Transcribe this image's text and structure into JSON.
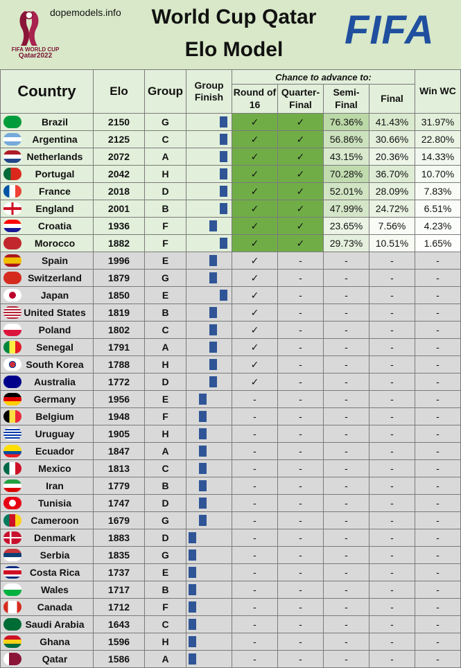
{
  "header": {
    "site": "dopemodels.info",
    "title_line1": "World Cup Qatar",
    "title_line2": "Elo Model",
    "fifa_logo": "FIFA",
    "emblem_text_line1": "FIFA WORLD CUP",
    "emblem_text_line2": "Qatar2022"
  },
  "columns": {
    "country": "Country",
    "elo": "Elo",
    "group": "Group",
    "group_finish": "Group Finish",
    "chance_header": "Chance to advance to:",
    "r16": "Round of 16",
    "qf": "Quarter-Final",
    "sf": "Semi-Final",
    "final": "Final",
    "win": "Win WC"
  },
  "colors": {
    "advanced_fill": "#70ad47",
    "bar": "#2f5597",
    "qualified_bg": "#e2efda",
    "eliminated_bg": "#d9d9d9"
  },
  "chart_data": {
    "type": "table",
    "title": "World Cup Qatar Elo Model",
    "rows": [
      {
        "country": "Brazil",
        "elo": "2150",
        "group": "G",
        "finish": 1,
        "r16": "✓",
        "qf": "✓",
        "sf": "76.36%",
        "final": "41.43%",
        "win": "31.97%"
      },
      {
        "country": "Argentina",
        "elo": "2125",
        "group": "C",
        "finish": 1,
        "r16": "✓",
        "qf": "✓",
        "sf": "56.86%",
        "final": "30.66%",
        "win": "22.80%"
      },
      {
        "country": "Netherlands",
        "elo": "2072",
        "group": "A",
        "finish": 1,
        "r16": "✓",
        "qf": "✓",
        "sf": "43.15%",
        "final": "20.36%",
        "win": "14.33%"
      },
      {
        "country": "Portugal",
        "elo": "2042",
        "group": "H",
        "finish": 1,
        "r16": "✓",
        "qf": "✓",
        "sf": "70.28%",
        "final": "36.70%",
        "win": "10.70%"
      },
      {
        "country": "France",
        "elo": "2018",
        "group": "D",
        "finish": 1,
        "r16": "✓",
        "qf": "✓",
        "sf": "52.01%",
        "final": "28.09%",
        "win": "7.83%"
      },
      {
        "country": "England",
        "elo": "2001",
        "group": "B",
        "finish": 1,
        "r16": "✓",
        "qf": "✓",
        "sf": "47.99%",
        "final": "24.72%",
        "win": "6.51%"
      },
      {
        "country": "Croatia",
        "elo": "1936",
        "group": "F",
        "finish": 2,
        "r16": "✓",
        "qf": "✓",
        "sf": "23.65%",
        "final": "7.56%",
        "win": "4.23%"
      },
      {
        "country": "Morocco",
        "elo": "1882",
        "group": "F",
        "finish": 1,
        "r16": "✓",
        "qf": "✓",
        "sf": "29.73%",
        "final": "10.51%",
        "win": "1.65%"
      },
      {
        "country": "Spain",
        "elo": "1996",
        "group": "E",
        "finish": 2,
        "r16": "✓",
        "qf": "-",
        "sf": "-",
        "final": "-",
        "win": "-"
      },
      {
        "country": "Switzerland",
        "elo": "1879",
        "group": "G",
        "finish": 2,
        "r16": "✓",
        "qf": "-",
        "sf": "-",
        "final": "-",
        "win": "-"
      },
      {
        "country": "Japan",
        "elo": "1850",
        "group": "E",
        "finish": 1,
        "r16": "✓",
        "qf": "-",
        "sf": "-",
        "final": "-",
        "win": "-"
      },
      {
        "country": "United States",
        "elo": "1819",
        "group": "B",
        "finish": 2,
        "r16": "✓",
        "qf": "-",
        "sf": "-",
        "final": "-",
        "win": "-"
      },
      {
        "country": "Poland",
        "elo": "1802",
        "group": "C",
        "finish": 2,
        "r16": "✓",
        "qf": "-",
        "sf": "-",
        "final": "-",
        "win": "-"
      },
      {
        "country": "Senegal",
        "elo": "1791",
        "group": "A",
        "finish": 2,
        "r16": "✓",
        "qf": "-",
        "sf": "-",
        "final": "-",
        "win": "-"
      },
      {
        "country": "South Korea",
        "elo": "1788",
        "group": "H",
        "finish": 2,
        "r16": "✓",
        "qf": "-",
        "sf": "-",
        "final": "-",
        "win": "-"
      },
      {
        "country": "Australia",
        "elo": "1772",
        "group": "D",
        "finish": 2,
        "r16": "✓",
        "qf": "-",
        "sf": "-",
        "final": "-",
        "win": "-"
      },
      {
        "country": "Germany",
        "elo": "1956",
        "group": "E",
        "finish": 3,
        "r16": "-",
        "qf": "-",
        "sf": "-",
        "final": "-",
        "win": "-"
      },
      {
        "country": "Belgium",
        "elo": "1948",
        "group": "F",
        "finish": 3,
        "r16": "-",
        "qf": "-",
        "sf": "-",
        "final": "-",
        "win": "-"
      },
      {
        "country": "Uruguay",
        "elo": "1905",
        "group": "H",
        "finish": 3,
        "r16": "-",
        "qf": "-",
        "sf": "-",
        "final": "-",
        "win": "-"
      },
      {
        "country": "Ecuador",
        "elo": "1847",
        "group": "A",
        "finish": 3,
        "r16": "-",
        "qf": "-",
        "sf": "-",
        "final": "-",
        "win": "-"
      },
      {
        "country": "Mexico",
        "elo": "1813",
        "group": "C",
        "finish": 3,
        "r16": "-",
        "qf": "-",
        "sf": "-",
        "final": "-",
        "win": "-"
      },
      {
        "country": "Iran",
        "elo": "1779",
        "group": "B",
        "finish": 3,
        "r16": "-",
        "qf": "-",
        "sf": "-",
        "final": "-",
        "win": "-"
      },
      {
        "country": "Tunisia",
        "elo": "1747",
        "group": "D",
        "finish": 3,
        "r16": "-",
        "qf": "-",
        "sf": "-",
        "final": "-",
        "win": "-"
      },
      {
        "country": "Cameroon",
        "elo": "1679",
        "group": "G",
        "finish": 3,
        "r16": "-",
        "qf": "-",
        "sf": "-",
        "final": "-",
        "win": "-"
      },
      {
        "country": "Denmark",
        "elo": "1883",
        "group": "D",
        "finish": 4,
        "r16": "-",
        "qf": "-",
        "sf": "-",
        "final": "-",
        "win": "-"
      },
      {
        "country": "Serbia",
        "elo": "1835",
        "group": "G",
        "finish": 4,
        "r16": "-",
        "qf": "-",
        "sf": "-",
        "final": "-",
        "win": "-"
      },
      {
        "country": "Costa Rica",
        "elo": "1737",
        "group": "E",
        "finish": 4,
        "r16": "-",
        "qf": "-",
        "sf": "-",
        "final": "-",
        "win": "-"
      },
      {
        "country": "Wales",
        "elo": "1717",
        "group": "B",
        "finish": 4,
        "r16": "-",
        "qf": "-",
        "sf": "-",
        "final": "-",
        "win": "-"
      },
      {
        "country": "Canada",
        "elo": "1712",
        "group": "F",
        "finish": 4,
        "r16": "-",
        "qf": "-",
        "sf": "-",
        "final": "-",
        "win": "-"
      },
      {
        "country": "Saudi Arabia",
        "elo": "1643",
        "group": "C",
        "finish": 4,
        "r16": "-",
        "qf": "-",
        "sf": "-",
        "final": "-",
        "win": "-"
      },
      {
        "country": "Ghana",
        "elo": "1596",
        "group": "H",
        "finish": 4,
        "r16": "-",
        "qf": "-",
        "sf": "-",
        "final": "-",
        "win": "-"
      },
      {
        "country": "Qatar",
        "elo": "1586",
        "group": "A",
        "finish": 4,
        "r16": "-",
        "qf": "-",
        "sf": "-",
        "final": "-",
        "win": "-"
      }
    ]
  }
}
